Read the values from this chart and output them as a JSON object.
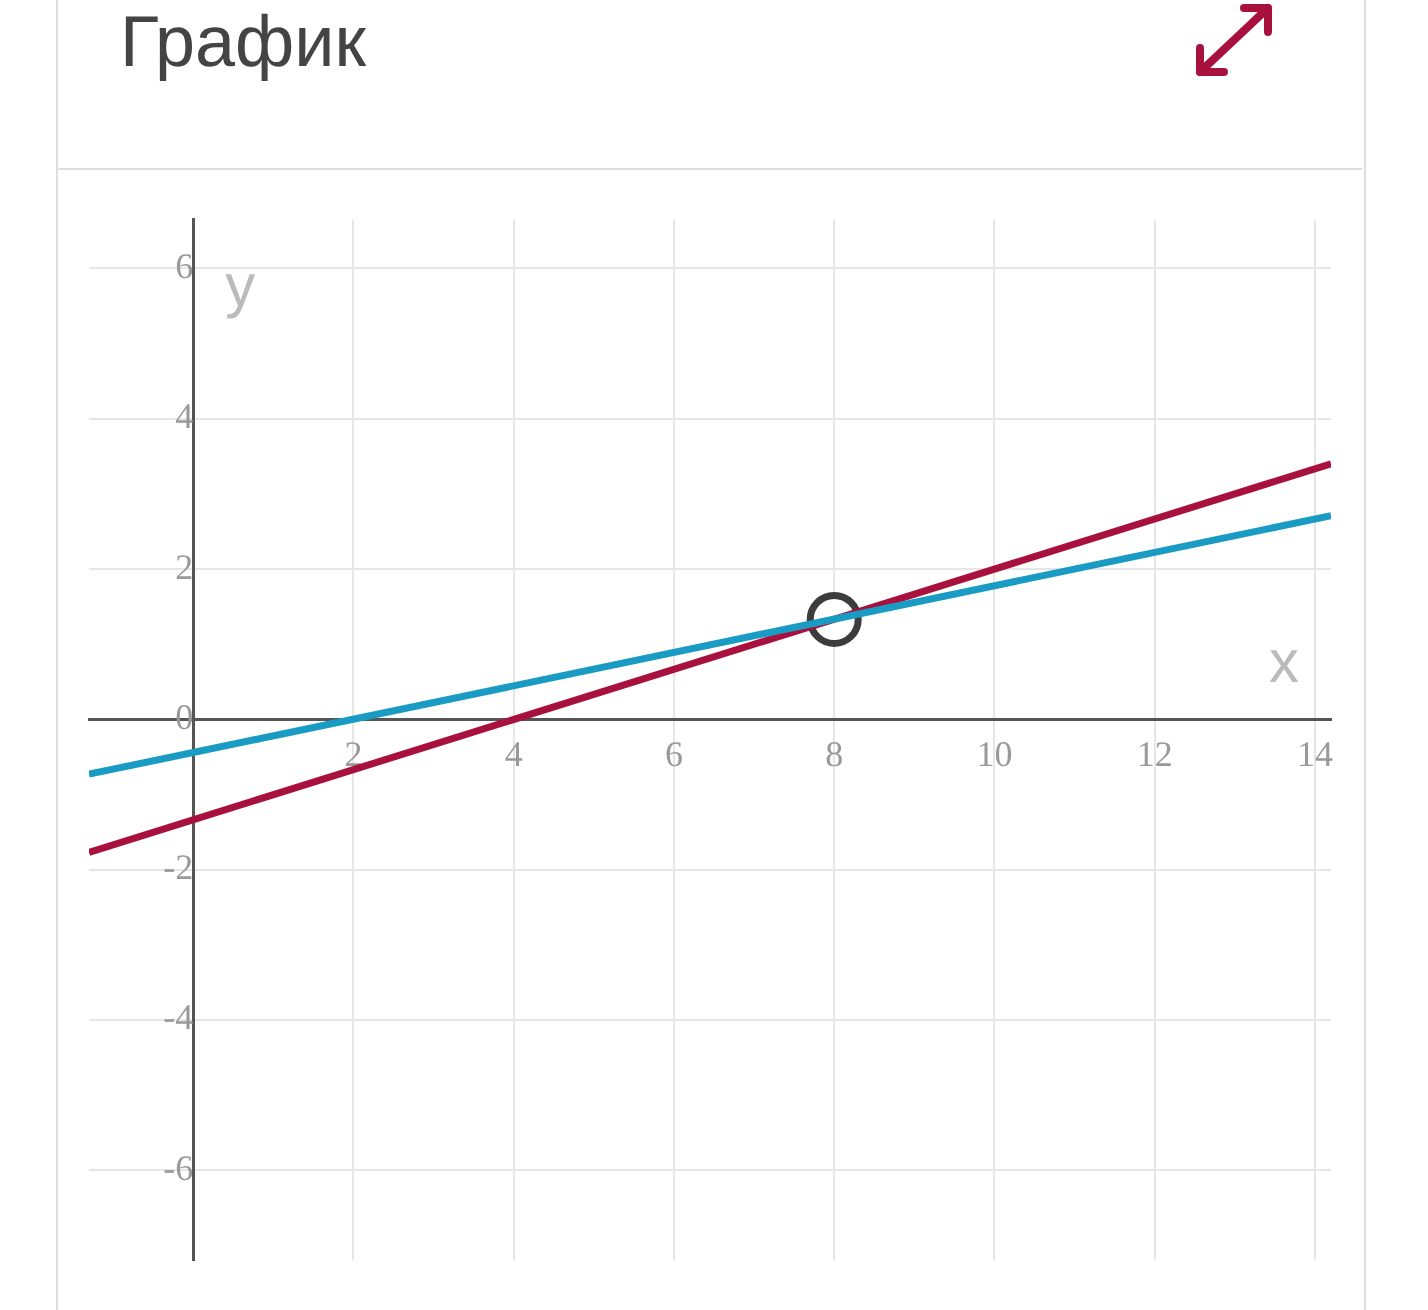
{
  "chart_data": {
    "type": "line",
    "title": "График",
    "xlabel": "x",
    "ylabel": "y",
    "xlim": [
      -1.3,
      14.2
    ],
    "ylim": [
      -7.2,
      6.65
    ],
    "xticks": [
      2,
      4,
      6,
      8,
      10,
      12,
      14
    ],
    "yticks": [
      -6,
      -4,
      -2,
      0,
      2,
      4,
      6
    ],
    "grid": true,
    "legend": false,
    "marker": "none",
    "line_style": "solid",
    "series": [
      {
        "color": "#1a9bc4",
        "x": [
          -1.3,
          14.2
        ],
        "values": [
          -0.73,
          2.71
        ]
      },
      {
        "color": "#a8113e",
        "x": [
          -1.3,
          14.2
        ],
        "values": [
          -1.77,
          3.4
        ]
      },
      {
        "type": "scatter",
        "marker": "circle",
        "color": "#3c3c3c",
        "x": [
          8
        ],
        "values": [
          1.33
        ]
      }
    ]
  }
}
